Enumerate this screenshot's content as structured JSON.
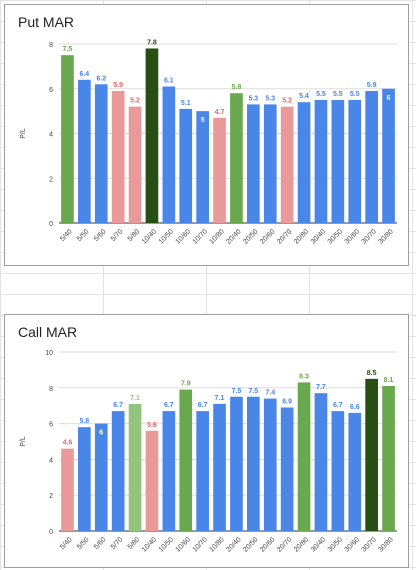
{
  "charts": [
    {
      "id": "put",
      "title": "Put MAR",
      "type": "bar",
      "ylabel": "P/L",
      "ylim": [
        0,
        8
      ],
      "yticks": [
        0,
        2,
        4,
        6,
        8
      ],
      "categories": [
        "5/40",
        "5/50",
        "5/60",
        "5/70",
        "5/80",
        "10/40",
        "10/50",
        "10/60",
        "10/70",
        "10/80",
        "20/40",
        "20/50",
        "20/60",
        "20/70",
        "20/80",
        "30/40",
        "30/50",
        "30/60",
        "30/70",
        "30/80"
      ],
      "values": [
        7.5,
        6.4,
        6.2,
        5.9,
        5.2,
        7.8,
        6.1,
        5.1,
        5,
        4.7,
        5.8,
        5.3,
        5.3,
        5.2,
        5.4,
        5.5,
        5.5,
        5.5,
        5.9,
        6
      ],
      "labels": [
        "7.5",
        "6.4",
        "6.2",
        "5.9",
        "5.2",
        "7.8",
        "6.1",
        "5.1",
        "5",
        "4.7",
        "5.8",
        "5.3",
        "5.3",
        "5.2",
        "5.4",
        "5.5",
        "5.5",
        "5.5",
        "5.9",
        "6"
      ],
      "colors": [
        "#6aa84f",
        "#4a86e8",
        "#4a86e8",
        "#ea9999",
        "#ea9999",
        "#274e13",
        "#4a86e8",
        "#4a86e8",
        "#4a86e8",
        "#ea9999",
        "#6aa84f",
        "#4a86e8",
        "#4a86e8",
        "#ea9999",
        "#4a86e8",
        "#4a86e8",
        "#4a86e8",
        "#4a86e8",
        "#4a86e8",
        "#4a86e8"
      ],
      "label_colors": [
        "#6aa84f",
        "#4a86e8",
        "#4a86e8",
        "#e06666",
        "#e06666",
        "#274e13",
        "#4a86e8",
        "#4a86e8",
        "#ffffff",
        "#e06666",
        "#6aa84f",
        "#4a86e8",
        "#4a86e8",
        "#e06666",
        "#4a86e8",
        "#4a86e8",
        "#4a86e8",
        "#4a86e8",
        "#4a86e8",
        "#ffffff"
      ],
      "grid": true
    },
    {
      "id": "call",
      "title": "Call MAR",
      "type": "bar",
      "ylabel": "P/L",
      "ylim": [
        0,
        10
      ],
      "yticks": [
        0,
        2,
        4,
        6,
        8,
        10
      ],
      "categories": [
        "5/40",
        "5/50",
        "5/60",
        "5/70",
        "5/80",
        "10/40",
        "10/50",
        "10/60",
        "10/70",
        "10/80",
        "20/40",
        "20/50",
        "20/60",
        "20/70",
        "20/80",
        "30/40",
        "30/50",
        "30/60",
        "30/70",
        "30/80"
      ],
      "values": [
        4.6,
        5.8,
        6,
        6.7,
        7.1,
        5.6,
        6.7,
        7.9,
        6.7,
        7.1,
        7.5,
        7.5,
        7.4,
        6.9,
        8.3,
        7.7,
        6.7,
        6.6,
        8.5,
        8.1
      ],
      "labels": [
        "4.6",
        "5.8",
        "6",
        "6.7",
        "7.1",
        "5.6",
        "6.7",
        "7.9",
        "6.7",
        "7.1",
        "7.5",
        "7.5",
        "7.4",
        "6.9",
        "8.3",
        "7.7",
        "6.7",
        "6.6",
        "8.5",
        "8.1"
      ],
      "colors": [
        "#ea9999",
        "#4a86e8",
        "#4a86e8",
        "#4a86e8",
        "#93c47d",
        "#ea9999",
        "#4a86e8",
        "#6aa84f",
        "#4a86e8",
        "#4a86e8",
        "#4a86e8",
        "#4a86e8",
        "#4a86e8",
        "#4a86e8",
        "#6aa84f",
        "#4a86e8",
        "#4a86e8",
        "#4a86e8",
        "#274e13",
        "#6aa84f"
      ],
      "label_colors": [
        "#e06666",
        "#4a86e8",
        "#ffffff",
        "#4a86e8",
        "#93c47d",
        "#e06666",
        "#4a86e8",
        "#6aa84f",
        "#4a86e8",
        "#4a86e8",
        "#4a86e8",
        "#4a86e8",
        "#4a86e8",
        "#4a86e8",
        "#6aa84f",
        "#4a86e8",
        "#4a86e8",
        "#4a86e8",
        "#274e13",
        "#6aa84f"
      ],
      "grid": true
    }
  ]
}
